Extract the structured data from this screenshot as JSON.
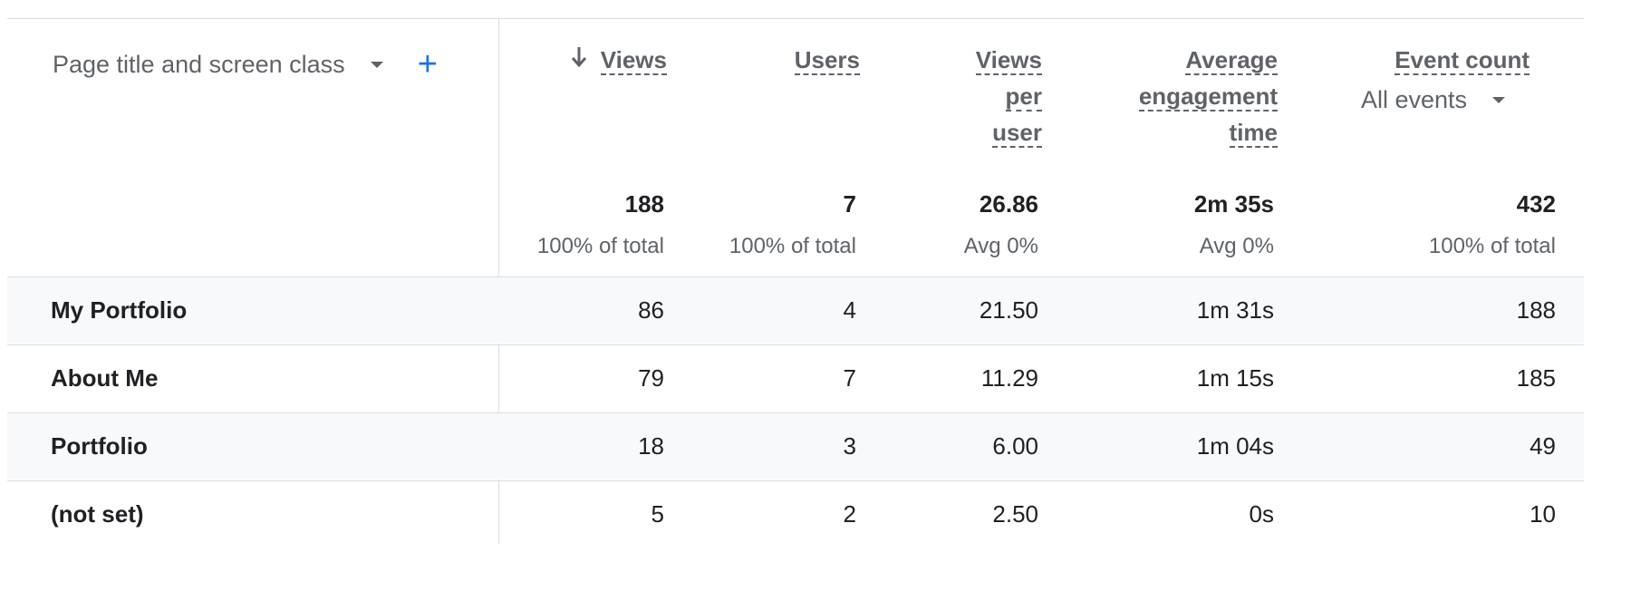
{
  "dimension": {
    "label": "Page title and screen class",
    "dropdown_icon": "caret-down-icon",
    "add_icon": "plus-icon",
    "add_symbol": "+"
  },
  "metrics": [
    {
      "key": "views",
      "lines": [
        "Views"
      ],
      "sorted": true,
      "sort_direction": "descending",
      "total": "188",
      "total_sub": "100% of total"
    },
    {
      "key": "users",
      "lines": [
        "Users"
      ],
      "total": "7",
      "total_sub": "100% of total"
    },
    {
      "key": "views_per_user",
      "lines": [
        "Views",
        "per",
        "user"
      ],
      "total": "26.86",
      "total_sub": "Avg 0%"
    },
    {
      "key": "avg_engagement_time",
      "lines": [
        "Average",
        "engagement",
        "time"
      ],
      "total": "2m 35s",
      "total_sub": "Avg 0%"
    },
    {
      "key": "event_count",
      "lines": [
        "Event count"
      ],
      "filter": "All events",
      "total": "432",
      "total_sub": "100% of total"
    }
  ],
  "rows": [
    {
      "label": "My Portfolio",
      "values": [
        "86",
        "4",
        "21.50",
        "1m 31s",
        "188"
      ]
    },
    {
      "label": "About Me",
      "values": [
        "79",
        "7",
        "11.29",
        "1m 15s",
        "185"
      ]
    },
    {
      "label": "Portfolio",
      "values": [
        "18",
        "3",
        "6.00",
        "1m 04s",
        "49"
      ]
    },
    {
      "label": "(not set)",
      "values": [
        "5",
        "2",
        "2.50",
        "0s",
        "10"
      ]
    }
  ],
  "colors": {
    "accent": "#1a73e8",
    "header_text": "#5f6368",
    "body_text": "#202124",
    "divider": "#dadce0",
    "row_shade": "#f8f9fa"
  }
}
